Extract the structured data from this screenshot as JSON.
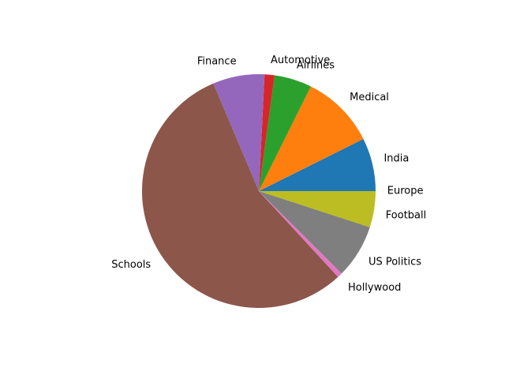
{
  "chart_data": {
    "type": "pie",
    "title": "",
    "start_angle_deg": 0,
    "direction": "counterclockwise",
    "legend": "none",
    "slices": [
      {
        "label": "India",
        "value": 7.5,
        "color": "#1f77b4"
      },
      {
        "label": "Medical",
        "value": 10.5,
        "color": "#ff7f0e"
      },
      {
        "label": "Airlines",
        "value": 5.3,
        "color": "#2ca02c"
      },
      {
        "label": "Automotive",
        "value": 1.4,
        "color": "#d62728"
      },
      {
        "label": "Finance",
        "value": 7.3,
        "color": "#9467bd"
      },
      {
        "label": "Schools",
        "value": 56.6,
        "color": "#8c564b"
      },
      {
        "label": "Hollywood",
        "value": 0.7,
        "color": "#e377c2"
      },
      {
        "label": "US Politics",
        "value": 7.6,
        "color": "#7f7f7f"
      },
      {
        "label": "Football",
        "value": 5.1,
        "color": "#bcbd22"
      },
      {
        "label": "Europe",
        "value": 0.0,
        "color": "#17becf"
      }
    ]
  }
}
